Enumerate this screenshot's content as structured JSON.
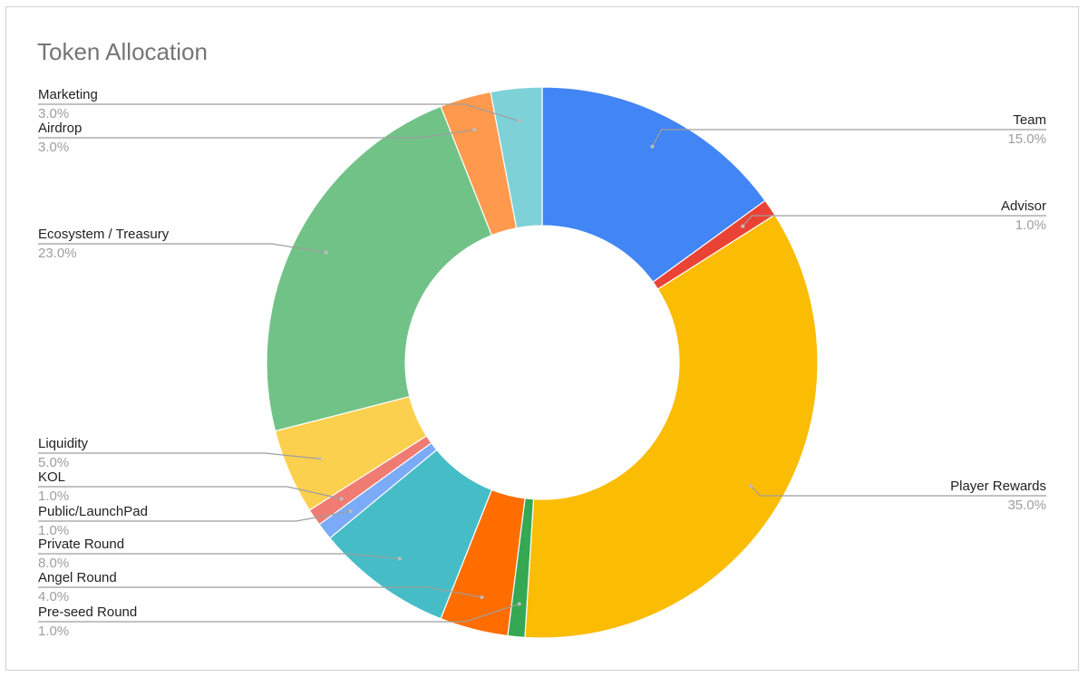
{
  "chart_data": {
    "type": "pie",
    "title": "Token Allocation",
    "slices": [
      {
        "label": "Team",
        "value": 15.0,
        "pct_label": "15.0%",
        "color": "#4285f4"
      },
      {
        "label": "Advisor",
        "value": 1.0,
        "pct_label": "1.0%",
        "color": "#ea4335"
      },
      {
        "label": "Player Rewards",
        "value": 35.0,
        "pct_label": "35.0%",
        "color": "#fbbc04"
      },
      {
        "label": "Pre-seed Round",
        "value": 1.0,
        "pct_label": "1.0%",
        "color": "#34a853"
      },
      {
        "label": "Angel Round",
        "value": 4.0,
        "pct_label": "4.0%",
        "color": "#ff6d01"
      },
      {
        "label": "Private Round",
        "value": 8.0,
        "pct_label": "8.0%",
        "color": "#46bdc6"
      },
      {
        "label": "Public/LaunchPad",
        "value": 1.0,
        "pct_label": "1.0%",
        "color": "#7baaf7"
      },
      {
        "label": "KOL",
        "value": 1.0,
        "pct_label": "1.0%",
        "color": "#f07b72"
      },
      {
        "label": "Liquidity",
        "value": 5.0,
        "pct_label": "5.0%",
        "color": "#fcd04f"
      },
      {
        "label": "Ecosystem / Treasury",
        "value": 23.0,
        "pct_label": "23.0%",
        "color": "#71c287"
      },
      {
        "label": "Airdrop",
        "value": 3.0,
        "pct_label": "3.0%",
        "color": "#ff994d"
      },
      {
        "label": "Marketing",
        "value": 3.0,
        "pct_label": "3.0%",
        "color": "#7ed1d7"
      }
    ]
  }
}
